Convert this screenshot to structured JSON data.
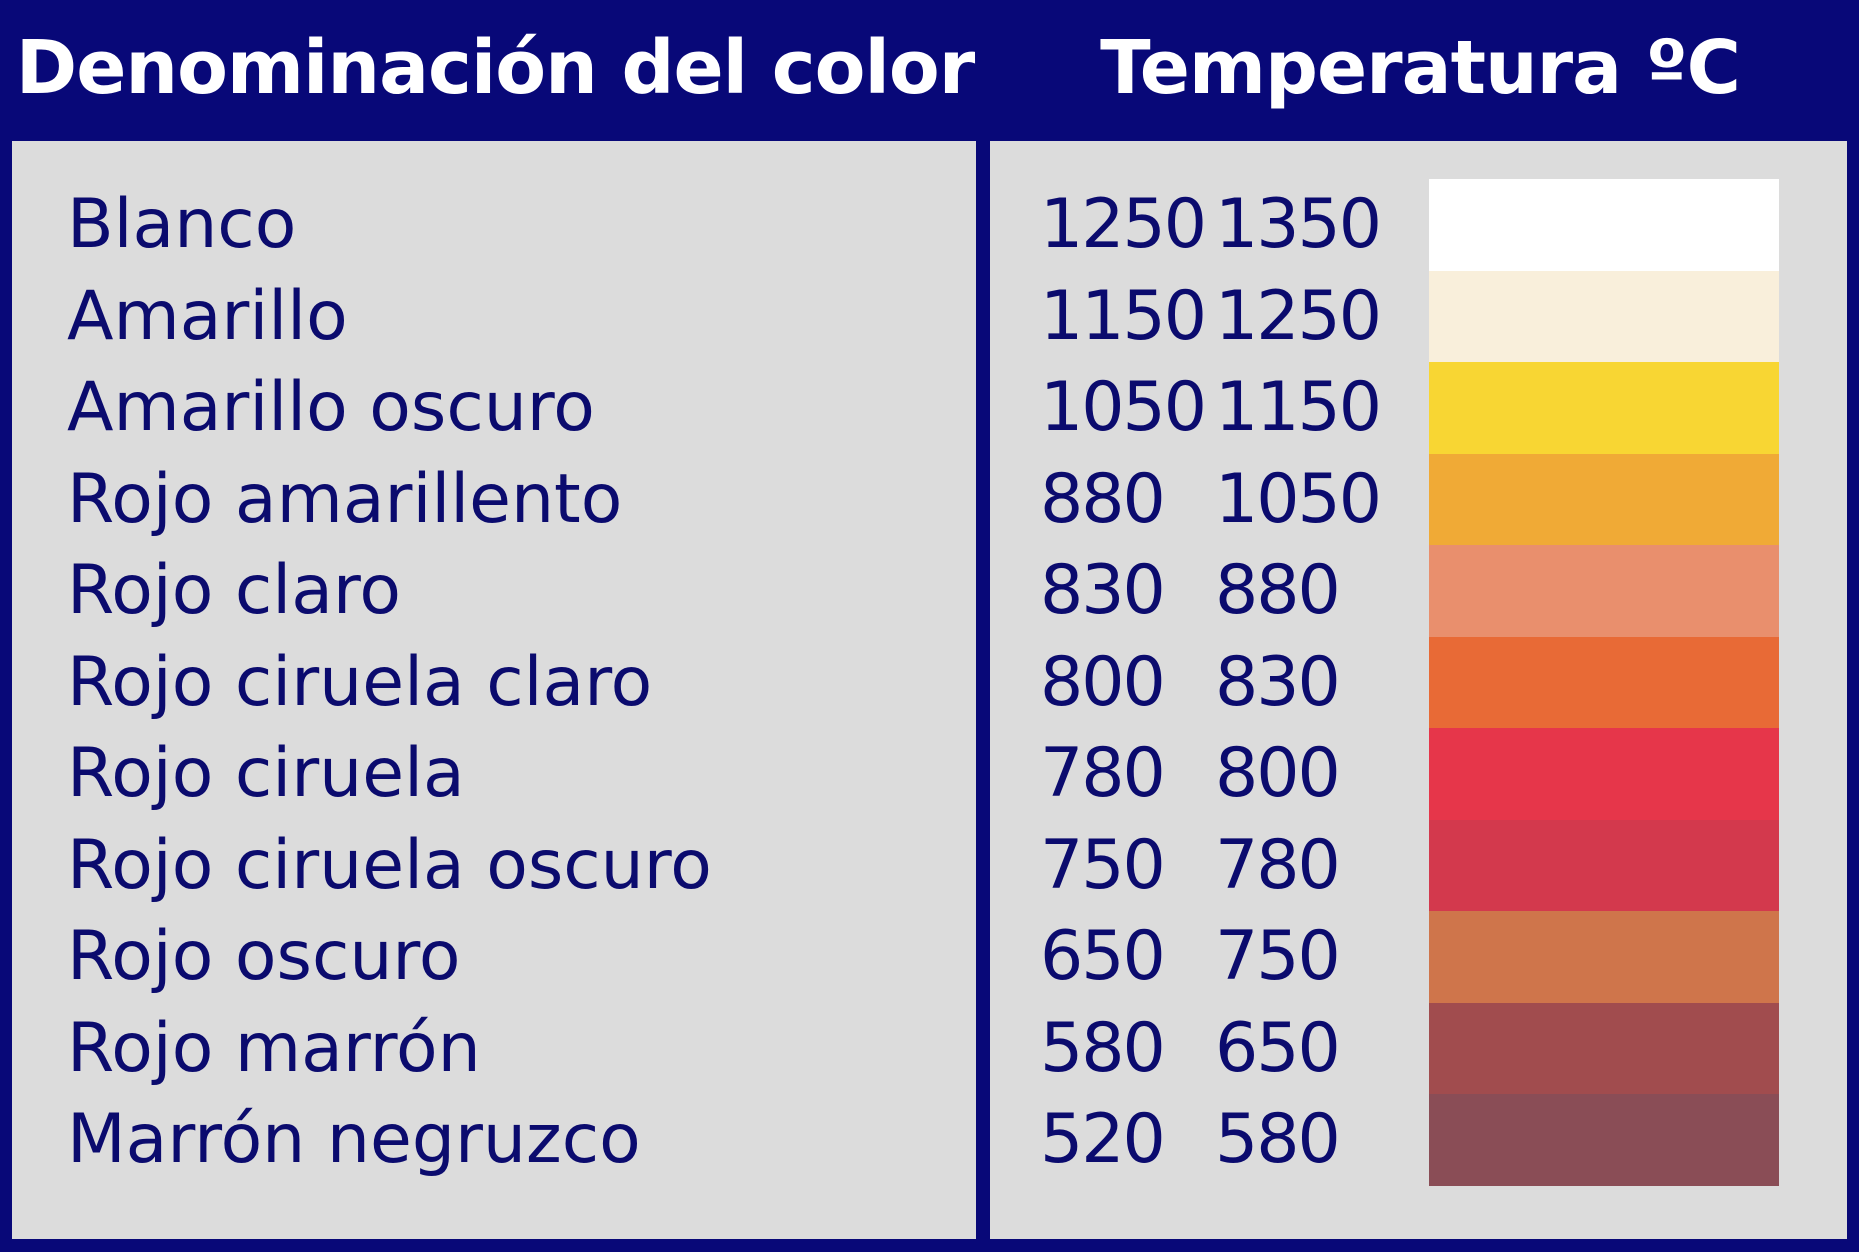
{
  "header": {
    "name_col": "Denominación del color",
    "temp_col": "Temperatura ºC"
  },
  "rows": [
    {
      "name": "Blanco",
      "min": "1250",
      "max": "1350",
      "color": "#ffffff"
    },
    {
      "name": "Amarillo",
      "min": "1150",
      "max": "1250",
      "color": "#f9efdb"
    },
    {
      "name": "Amarillo oscuro",
      "min": "1050",
      "max": "1150",
      "color": "#f8d633"
    },
    {
      "name": "Rojo amarillento",
      "min": "880",
      "max": "1050",
      "color": "#f0aa36"
    },
    {
      "name": "Rojo claro",
      "min": "830",
      "max": "880",
      "color": "#e98f6d"
    },
    {
      "name": "Rojo ciruela claro",
      "min": "800",
      "max": "830",
      "color": "#e86a36"
    },
    {
      "name": "Rojo ciruela",
      "min": "780",
      "max": "800",
      "color": "#e6364a"
    },
    {
      "name": "Rojo ciruela oscuro",
      "min": "750",
      "max": "780",
      "color": "#d3394d"
    },
    {
      "name": "Rojo oscuro",
      "min": "650",
      "max": "750",
      "color": "#cf754b"
    },
    {
      "name": "Rojo marrón",
      "min": "580",
      "max": "650",
      "color": "#a14c4e"
    },
    {
      "name": "Marrón negruzco",
      "min": "520",
      "max": "580",
      "color": "#8a4d56"
    }
  ],
  "colors": {
    "border": "#080878",
    "panel": "#dcdcdc",
    "text": "#0b0b6e",
    "header_text": "#ffffff"
  }
}
